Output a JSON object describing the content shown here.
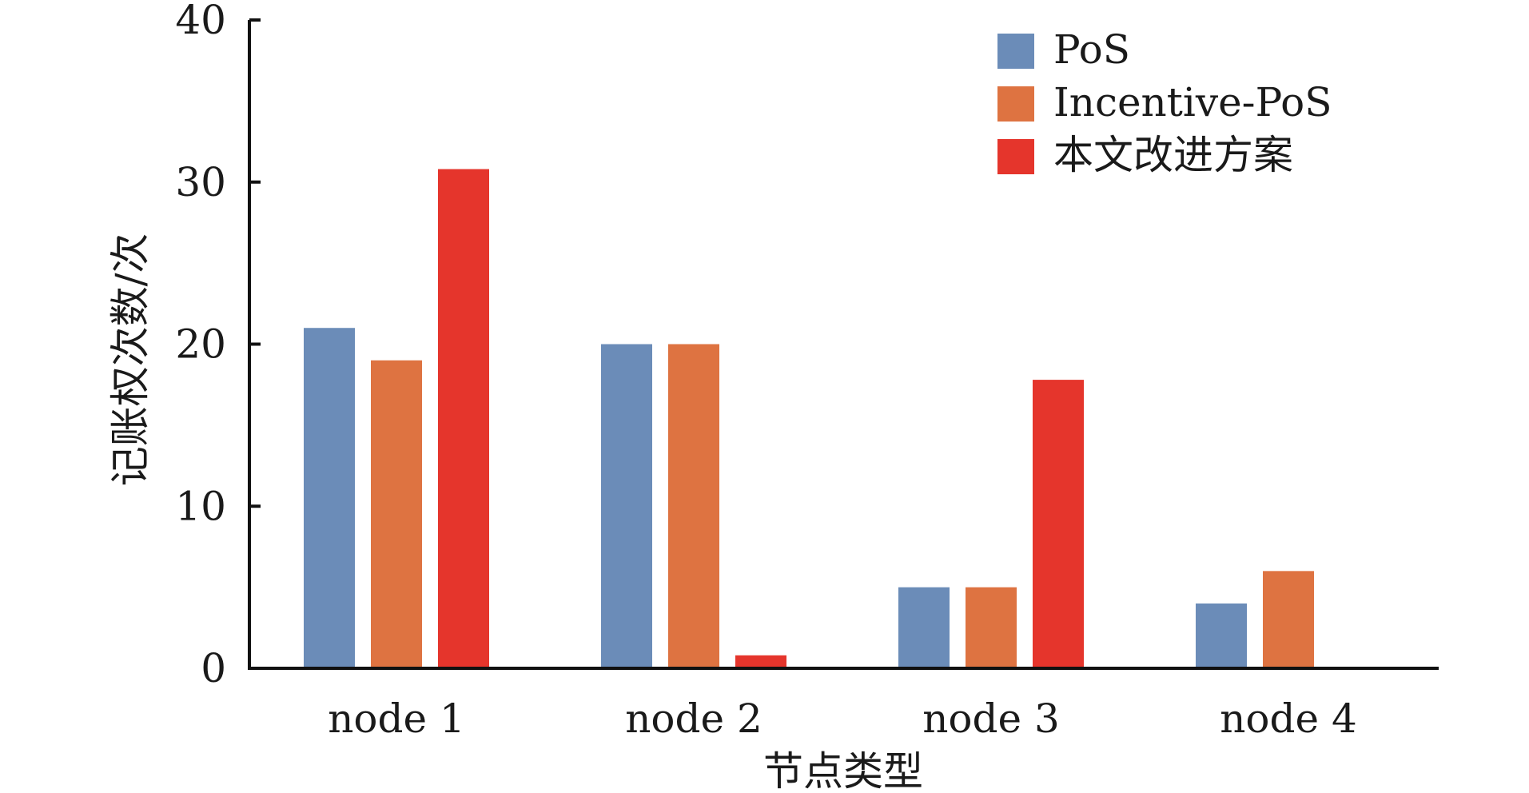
{
  "chart_data": {
    "type": "bar",
    "title": "",
    "xlabel": "节点类型",
    "ylabel": "记账权次数/次",
    "ylim": [
      0,
      40
    ],
    "yticks": [
      0,
      10,
      20,
      30,
      40
    ],
    "categories": [
      "node 1",
      "node 2",
      "node 3",
      "node 4"
    ],
    "series": [
      {
        "name": "PoS",
        "color": "#6b8cb8",
        "values": [
          21,
          20,
          5,
          4
        ]
      },
      {
        "name": "Incentive-PoS",
        "color": "#de7341",
        "values": [
          19,
          20,
          5,
          6
        ]
      },
      {
        "name": "本文改进方案",
        "color": "#e5352c",
        "values": [
          30.8,
          0.8,
          17.8,
          0
        ]
      }
    ],
    "legend_position": "top-right",
    "grid": false
  }
}
